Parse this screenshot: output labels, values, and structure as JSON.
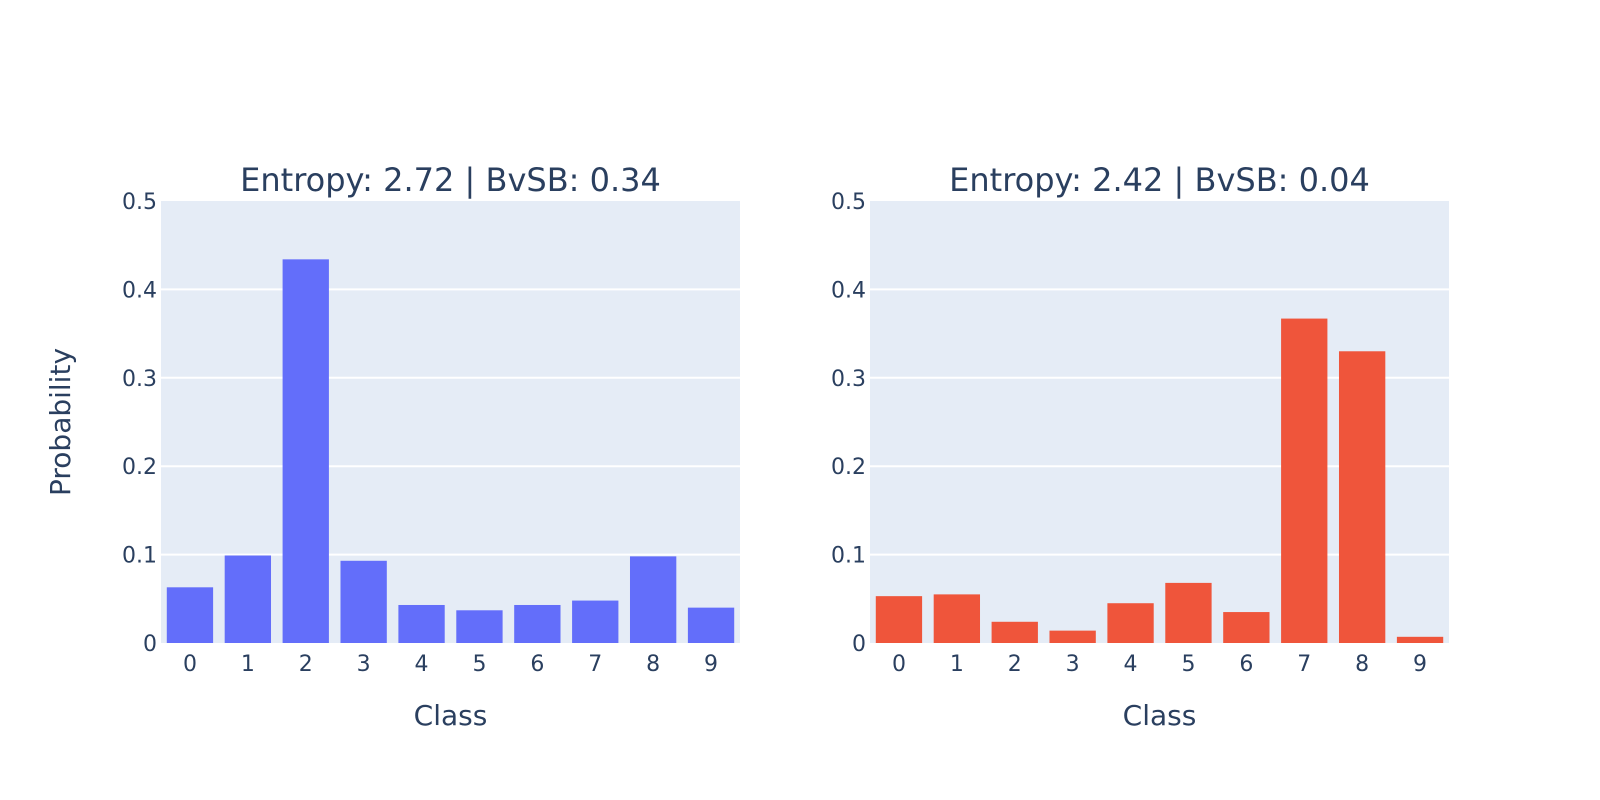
{
  "chart_data": [
    {
      "type": "bar",
      "title": "Entropy: 2.72 | BvSB: 0.34",
      "xlabel": "Class",
      "ylabel": "Probability",
      "categories": [
        "0",
        "1",
        "2",
        "3",
        "4",
        "5",
        "6",
        "7",
        "8",
        "9"
      ],
      "values": [
        0.063,
        0.099,
        0.434,
        0.093,
        0.043,
        0.037,
        0.043,
        0.048,
        0.098,
        0.04
      ],
      "ylim": [
        0,
        0.5
      ],
      "yticks": [
        "0",
        "0.1",
        "0.2",
        "0.3",
        "0.4",
        "0.5"
      ],
      "color": "#636efa",
      "grid": true
    },
    {
      "type": "bar",
      "title": "Entropy: 2.42 | BvSB: 0.04",
      "xlabel": "Class",
      "ylabel": "",
      "categories": [
        "0",
        "1",
        "2",
        "3",
        "4",
        "5",
        "6",
        "7",
        "8",
        "9"
      ],
      "values": [
        0.053,
        0.055,
        0.024,
        0.014,
        0.045,
        0.068,
        0.035,
        0.367,
        0.33,
        0.007
      ],
      "ylim": [
        0,
        0.5
      ],
      "yticks": [
        "0",
        "0.1",
        "0.2",
        "0.3",
        "0.4",
        "0.5"
      ],
      "color": "#ef553b",
      "grid": true
    }
  ],
  "style": {
    "plot_background": "#e5ecf6",
    "gridline_color": "#ffffff",
    "text_color": "#2a3f5f"
  }
}
